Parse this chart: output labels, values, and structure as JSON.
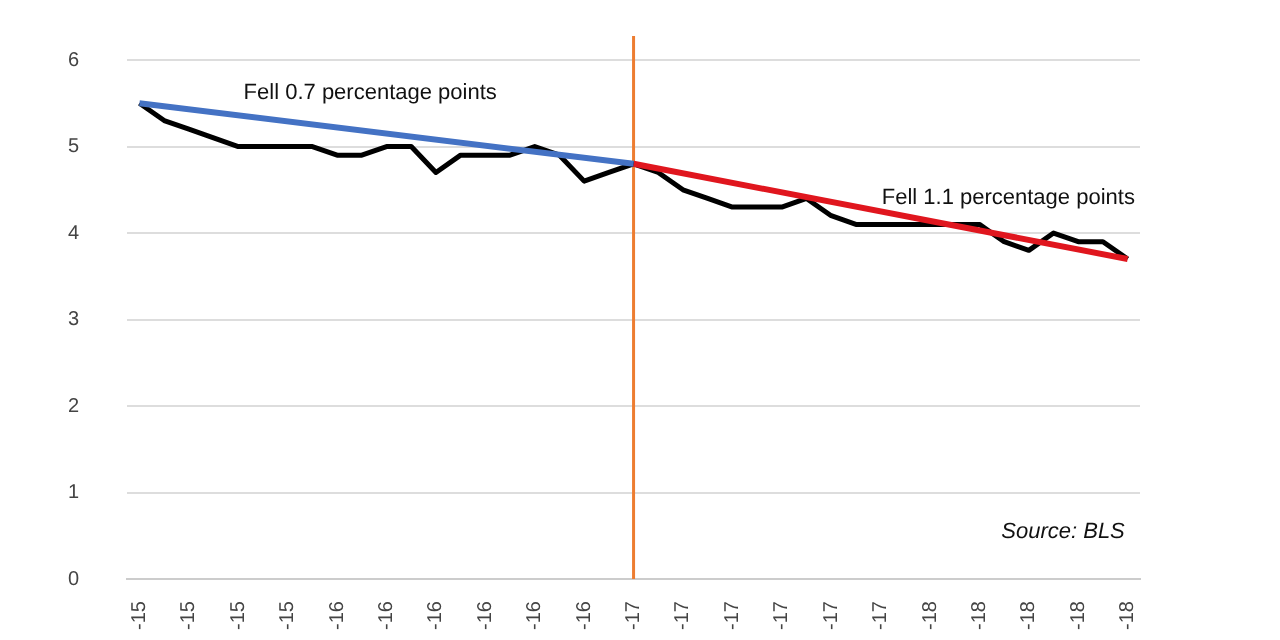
{
  "chart_data": {
    "type": "line",
    "categories": [
      "-15",
      null,
      "-15",
      null,
      "-15",
      null,
      "-15",
      null,
      "-16",
      null,
      "-16",
      null,
      "-16",
      null,
      "-16",
      null,
      "-16",
      null,
      "-16",
      null,
      "-17",
      null,
      "-17",
      null,
      "-17",
      null,
      "-17",
      null,
      "-17",
      null,
      "-17",
      null,
      "-18",
      null,
      "-18",
      null,
      "-18",
      null,
      "-18",
      null,
      "-18"
    ],
    "series": [
      {
        "color": "#000000",
        "values": [
          5.5,
          5.3,
          5.2,
          5.1,
          5.0,
          5.0,
          5.0,
          5.0,
          4.9,
          4.9,
          5.0,
          5.0,
          4.7,
          4.9,
          4.9,
          4.9,
          5.0,
          4.9,
          4.6,
          4.7,
          4.8,
          4.7,
          4.5,
          4.4,
          4.3,
          4.3,
          4.3,
          4.4,
          4.2,
          4.1,
          4.1,
          4.1,
          4.1,
          4.1,
          4.1,
          3.9,
          3.8,
          4.0,
          3.9,
          3.9,
          3.7
        ]
      },
      {
        "color": "#4472c4",
        "values": [
          5.5,
          null,
          null,
          null,
          null,
          null,
          null,
          null,
          null,
          null,
          null,
          null,
          null,
          null,
          null,
          null,
          null,
          null,
          null,
          null,
          4.8,
          null,
          null,
          null,
          null,
          null,
          null,
          null,
          null,
          null,
          null,
          null,
          null,
          null,
          null,
          null,
          null,
          null,
          null,
          null,
          null
        ]
      },
      {
        "color": "#e0161e",
        "values": [
          null,
          null,
          null,
          null,
          null,
          null,
          null,
          null,
          null,
          null,
          null,
          null,
          null,
          null,
          null,
          null,
          null,
          null,
          null,
          null,
          4.8,
          null,
          null,
          null,
          null,
          null,
          null,
          null,
          null,
          null,
          null,
          null,
          null,
          null,
          null,
          null,
          null,
          null,
          null,
          null,
          3.7
        ]
      }
    ],
    "ylim": [
      0,
      6
    ],
    "yticks": [
      0,
      1,
      2,
      3,
      4,
      5,
      6
    ],
    "grid": "y",
    "legend": false,
    "marker": "none",
    "ref_lines": [
      {
        "axis": "x",
        "value": "-17",
        "color": "#ed7d31"
      }
    ],
    "annotations": [
      "Fell 0.7 percentage points",
      "Fell 1.1 percentage points",
      "Source: BLS"
    ]
  }
}
